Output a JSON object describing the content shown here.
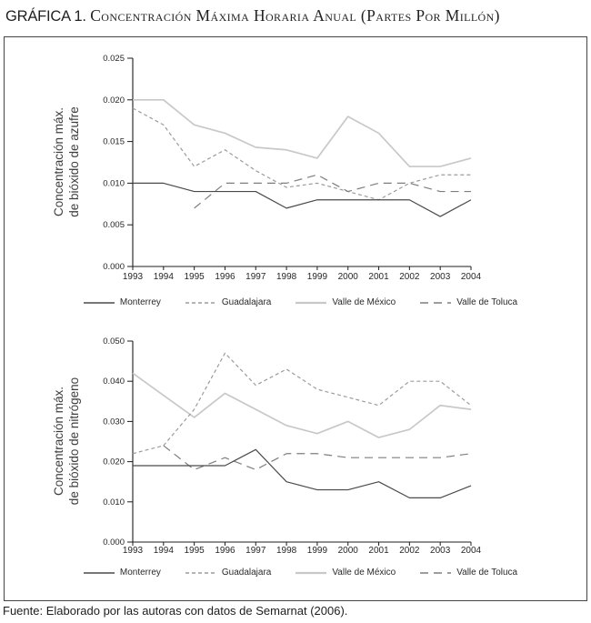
{
  "title": {
    "prefix": "GRÁFICA 1.",
    "main": "Concentración Máxima Horaria Anual (Partes Por Millón)"
  },
  "source_note": "Fuente: Elaborado por las autoras con datos de Semarnat (2006).",
  "chart_data": [
    {
      "type": "line",
      "name": "so2",
      "ylabel": "Concentración máx.\nde bióxido de azufre",
      "x": [
        "1993",
        "1994",
        "1995",
        "1996",
        "1997",
        "1998",
        "1999",
        "2000",
        "2001",
        "2002",
        "2003",
        "2004"
      ],
      "ylim": [
        0,
        0.025
      ],
      "yticks": [
        "0.000",
        "0.005",
        "0.010",
        "0.015",
        "0.020",
        "0.025"
      ],
      "grid": false,
      "legend_position": "bottom",
      "series": [
        {
          "name": "Monterrey",
          "color": "#4a4a4a",
          "dash": "",
          "width": 1.2,
          "values": [
            0.01,
            0.01,
            0.009,
            0.009,
            0.009,
            0.007,
            0.008,
            0.008,
            0.008,
            0.008,
            0.006,
            0.008
          ]
        },
        {
          "name": "Guadalajara",
          "color": "#9c9c9c",
          "dash": "4 3",
          "width": 1.2,
          "values": [
            0.019,
            0.017,
            0.012,
            0.014,
            0.0115,
            0.0095,
            0.01,
            0.009,
            0.008,
            0.01,
            0.011,
            0.011
          ]
        },
        {
          "name": "Valle de México",
          "color": "#c8c8c8",
          "dash": "",
          "width": 1.7,
          "values": [
            0.02,
            0.02,
            0.017,
            0.016,
            0.0143,
            0.014,
            0.013,
            0.018,
            0.016,
            0.012,
            0.012,
            0.013
          ]
        },
        {
          "name": "Valle de Toluca",
          "color": "#7e7e7e",
          "dash": "9 6",
          "width": 1.2,
          "values": [
            null,
            null,
            0.007,
            0.01,
            0.01,
            0.01,
            0.011,
            0.009,
            0.01,
            0.01,
            0.009,
            0.009
          ]
        }
      ]
    },
    {
      "type": "line",
      "name": "no2",
      "ylabel": "Concentración máx.\nde bióxido de nitrógeno",
      "x": [
        "1993",
        "1994",
        "1995",
        "1996",
        "1997",
        "1998",
        "1999",
        "2000",
        "2001",
        "2002",
        "2003",
        "2004"
      ],
      "ylim": [
        0,
        0.05
      ],
      "yticks": [
        "0.000",
        "0.010",
        "0.020",
        "0.030",
        "0.040",
        "0.050"
      ],
      "grid": false,
      "legend_position": "bottom",
      "series": [
        {
          "name": "Monterrey",
          "color": "#4a4a4a",
          "dash": "",
          "width": 1.2,
          "values": [
            0.019,
            0.019,
            0.019,
            0.019,
            0.023,
            0.015,
            0.013,
            0.013,
            0.015,
            0.011,
            0.011,
            0.014
          ]
        },
        {
          "name": "Guadalajara",
          "color": "#9c9c9c",
          "dash": "4 3",
          "width": 1.2,
          "values": [
            0.022,
            0.024,
            0.033,
            0.047,
            0.039,
            0.043,
            0.038,
            0.036,
            0.034,
            0.04,
            0.04,
            0.034
          ]
        },
        {
          "name": "Valle de México",
          "color": "#c8c8c8",
          "dash": "",
          "width": 1.7,
          "values": [
            0.042,
            0.0365,
            0.031,
            0.037,
            0.033,
            0.029,
            0.027,
            0.03,
            0.026,
            0.028,
            0.034,
            0.033
          ]
        },
        {
          "name": "Valle de Toluca",
          "color": "#7e7e7e",
          "dash": "9 6",
          "width": 1.2,
          "values": [
            null,
            0.024,
            0.018,
            0.021,
            0.018,
            0.022,
            0.022,
            0.021,
            0.021,
            0.021,
            0.021,
            0.022
          ]
        }
      ]
    }
  ]
}
